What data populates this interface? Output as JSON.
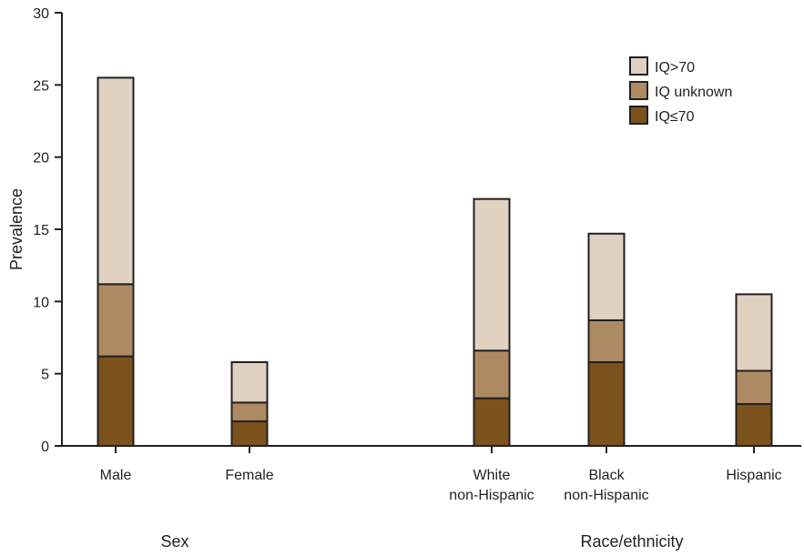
{
  "chart_data": {
    "type": "bar",
    "stacked": true,
    "title": "",
    "ylabel": "Prevalence",
    "ylim": [
      0,
      30
    ],
    "yticks": [
      0,
      5,
      10,
      15,
      20,
      25,
      30
    ],
    "grid": false,
    "legend_position": "top-right",
    "categories": [
      [
        "Male"
      ],
      [
        "Female"
      ],
      [
        "White",
        "non-Hispanic"
      ],
      [
        "Black",
        "non-Hispanic"
      ],
      [
        "Hispanic"
      ]
    ],
    "groups": [
      {
        "label": "Sex",
        "categories": [
          0,
          1
        ]
      },
      {
        "label": "Race/ethnicity",
        "categories": [
          2,
          3,
          4
        ]
      }
    ],
    "series": [
      {
        "name": "IQ≤70",
        "color": "#7b521c",
        "values": [
          6.2,
          1.7,
          3.3,
          5.8,
          2.9
        ]
      },
      {
        "name": "IQ unknown",
        "color": "#ae8a63",
        "values": [
          5.0,
          1.3,
          3.3,
          2.9,
          2.3
        ]
      },
      {
        "name": "IQ>70",
        "color": "#e0d1c0",
        "values": [
          14.3,
          2.8,
          10.5,
          6.0,
          5.3
        ]
      }
    ],
    "legend_order": [
      2,
      1,
      0
    ]
  }
}
